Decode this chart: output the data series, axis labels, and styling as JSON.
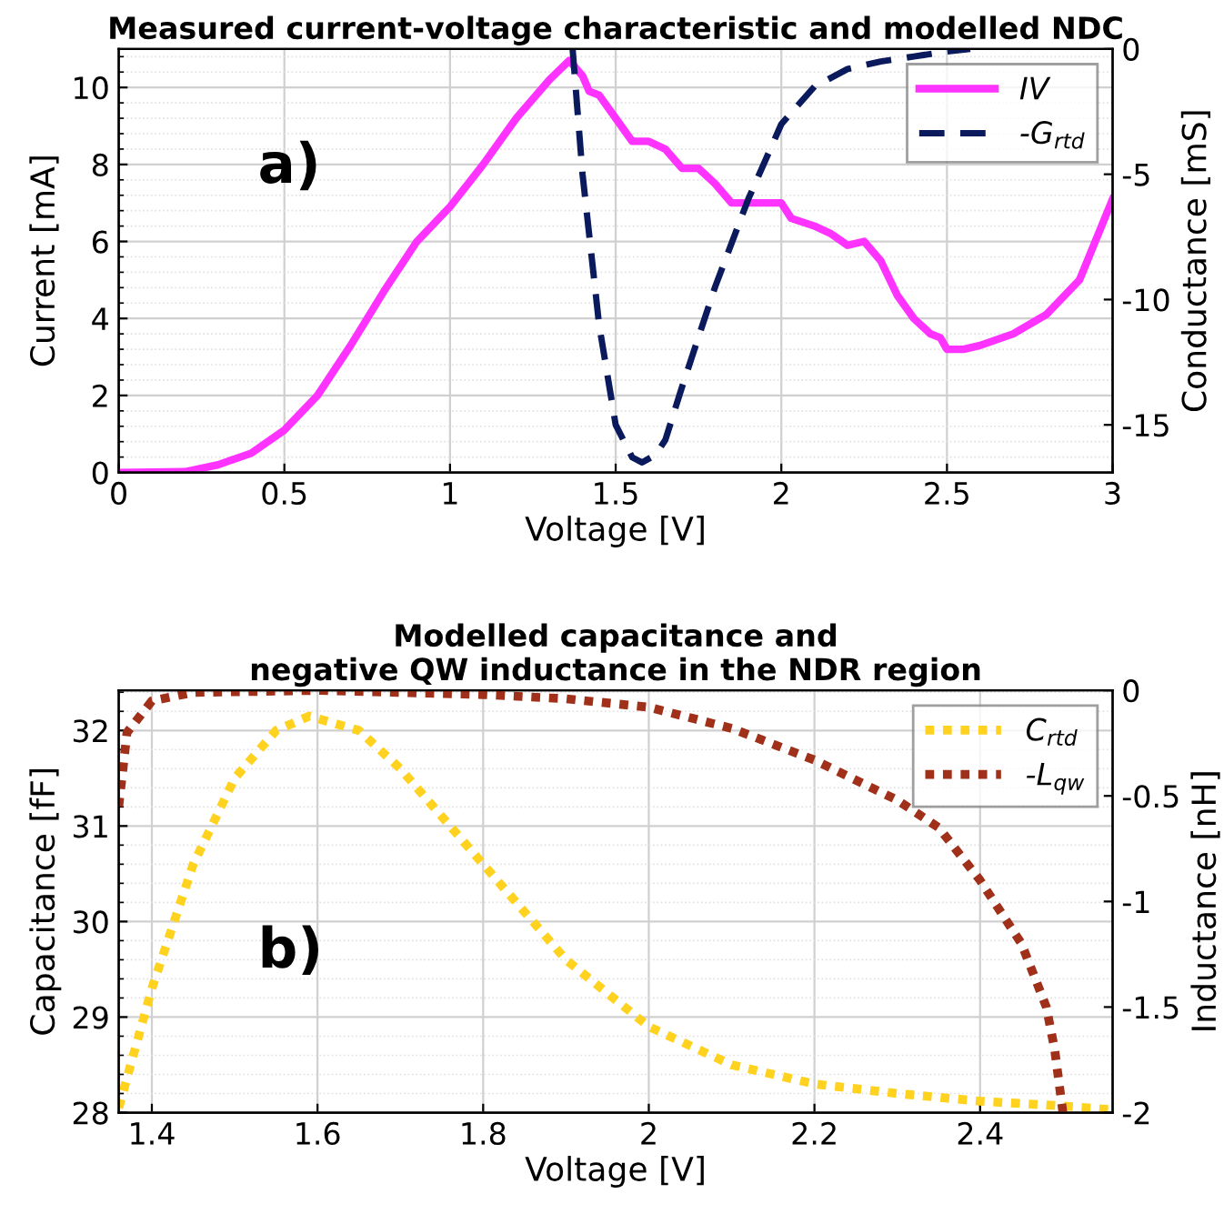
{
  "chart_data": [
    {
      "type": "line",
      "title": "Measured current-voltage characteristic and modelled NDC",
      "xlabel": "Voltage [V]",
      "ylabel": "Current [mA]",
      "y2label": "Conductance [mS]",
      "xlim": [
        0,
        3
      ],
      "xticks": [
        0,
        0.5,
        1,
        1.5,
        2,
        2.5,
        3
      ],
      "ylim": [
        0,
        11
      ],
      "yticks": [
        0,
        2,
        4,
        6,
        8,
        10
      ],
      "y2lim": [
        -16.9,
        0
      ],
      "y2ticks": [
        -15,
        -10,
        -5,
        0
      ],
      "grid": true,
      "legend": "top right",
      "annotations": [
        "a)"
      ],
      "series": [
        {
          "name": "IV",
          "color": "#ff33ff",
          "line_style": "solid",
          "x": [
            0,
            0.2,
            0.3,
            0.4,
            0.5,
            0.6,
            0.7,
            0.8,
            0.9,
            1.0,
            1.1,
            1.2,
            1.3,
            1.36,
            1.4,
            1.42,
            1.45,
            1.5,
            1.55,
            1.6,
            1.65,
            1.7,
            1.75,
            1.8,
            1.85,
            1.9,
            2.0,
            2.03,
            2.1,
            2.15,
            2.2,
            2.25,
            2.3,
            2.35,
            2.4,
            2.45,
            2.48,
            2.5,
            2.55,
            2.6,
            2.7,
            2.8,
            2.9,
            3.0
          ],
          "values": [
            0,
            0.02,
            0.2,
            0.5,
            1.1,
            2.0,
            3.3,
            4.7,
            6.0,
            6.9,
            8.0,
            9.2,
            10.2,
            10.7,
            10.3,
            9.9,
            9.8,
            9.2,
            8.6,
            8.6,
            8.4,
            7.9,
            7.9,
            7.5,
            7.0,
            7.0,
            7.0,
            6.6,
            6.4,
            6.2,
            5.9,
            6.0,
            5.5,
            4.6,
            4.0,
            3.6,
            3.5,
            3.2,
            3.2,
            3.3,
            3.6,
            4.1,
            5.0,
            7.1
          ]
        },
        {
          "name": "-G$_{rtd}$",
          "color": "#0a1a5c",
          "line_style": "dashed",
          "axis": "y2",
          "x": [
            1.37,
            1.4,
            1.45,
            1.5,
            1.55,
            1.58,
            1.62,
            1.65,
            1.7,
            1.8,
            1.9,
            2.0,
            2.1,
            2.2,
            2.3,
            2.4,
            2.5,
            2.57
          ],
          "values": [
            0,
            -5,
            -11,
            -15,
            -16.3,
            -16.5,
            -16.2,
            -15.6,
            -13.5,
            -9.5,
            -6,
            -3,
            -1.5,
            -0.8,
            -0.5,
            -0.3,
            -0.1,
            0
          ]
        }
      ]
    },
    {
      "type": "line",
      "title": "Modelled capacitance and\nnegative QW inductance in the NDR region",
      "xlabel": "Voltage [V]",
      "ylabel": "Capacitance [fF]",
      "y2label": "Inductance [nH]",
      "xlim": [
        1.36,
        2.56
      ],
      "xticks": [
        1.4,
        1.6,
        1.8,
        2,
        2.2,
        2.4
      ],
      "ylim": [
        28,
        32.42
      ],
      "yticks": [
        28,
        29,
        30,
        31,
        32
      ],
      "y2lim": [
        -2,
        0
      ],
      "y2ticks": [
        -2,
        -1.5,
        -1,
        -0.5,
        0
      ],
      "grid": true,
      "legend": "top right",
      "annotations": [
        "b)"
      ],
      "series": [
        {
          "name": "C$_{rtd}$",
          "color": "#ffd21f",
          "line_style": "dotted",
          "x": [
            1.36,
            1.4,
            1.45,
            1.5,
            1.55,
            1.59,
            1.65,
            1.7,
            1.8,
            1.9,
            2.0,
            2.1,
            2.2,
            2.3,
            2.4,
            2.5,
            2.56
          ],
          "values": [
            28.05,
            29.3,
            30.6,
            31.5,
            32.0,
            32.15,
            32.0,
            31.6,
            30.6,
            29.6,
            28.9,
            28.5,
            28.3,
            28.2,
            28.12,
            28.07,
            28.03
          ]
        },
        {
          "name": "-L$_{qw}$",
          "color": "#a0301a",
          "line_style": "dotted",
          "axis": "y2",
          "x": [
            1.36,
            1.37,
            1.4,
            1.45,
            1.6,
            1.8,
            1.9,
            2.0,
            2.1,
            2.2,
            2.3,
            2.35,
            2.4,
            2.45,
            2.48,
            2.49,
            2.5
          ],
          "values": [
            -0.55,
            -0.2,
            -0.05,
            -0.01,
            0,
            -0.02,
            -0.04,
            -0.08,
            -0.18,
            -0.33,
            -0.52,
            -0.65,
            -0.9,
            -1.2,
            -1.5,
            -1.7,
            -2.0
          ]
        }
      ]
    }
  ]
}
